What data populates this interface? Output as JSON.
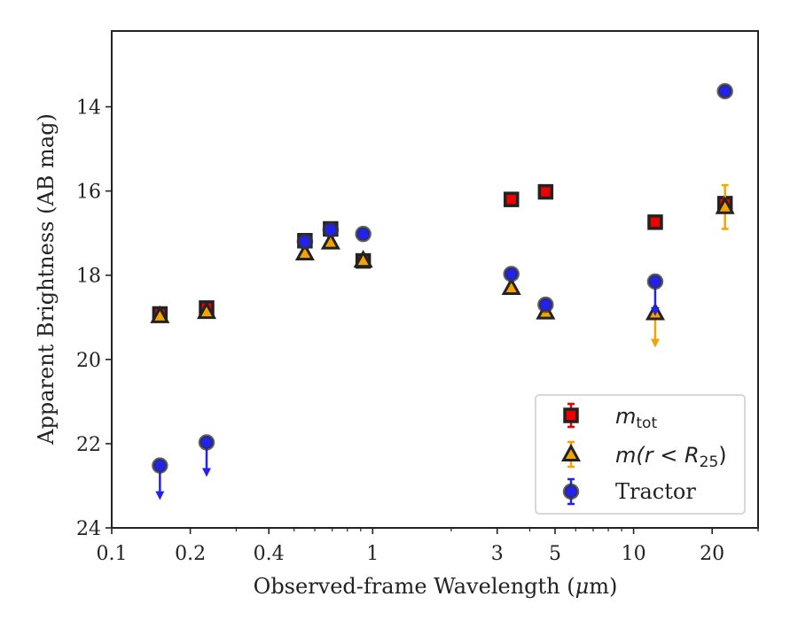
{
  "chart_data": {
    "type": "scatter",
    "x_scale": "log",
    "y_inverted": true,
    "xlabel_pre": "Observed-frame Wavelength (",
    "xlabel_mu": "μ",
    "xlabel_post": "m)",
    "ylabel": "Apparent Brightness (AB mag)",
    "xlim": [
      0.1,
      30
    ],
    "ylim": [
      24,
      12.2
    ],
    "x_ticks": [
      0.1,
      0.2,
      0.4,
      1,
      3,
      5,
      10,
      20
    ],
    "x_tick_labels": [
      "0.1",
      "0.2",
      "0.4",
      "1",
      "3",
      "5",
      "10",
      "20"
    ],
    "y_ticks": [
      14,
      16,
      18,
      20,
      22,
      24
    ],
    "y_tick_labels": [
      "14",
      "16",
      "18",
      "20",
      "22",
      "24"
    ],
    "legend_position": "bottom-right",
    "series": [
      {
        "name": "m_tot",
        "legend_text": "m",
        "legend_sub": "tot",
        "marker": "square",
        "color": "#ee0000",
        "edge": "#222222",
        "points": [
          {
            "x": 0.153,
            "y": 18.92,
            "err": 0.08
          },
          {
            "x": 0.231,
            "y": 18.78,
            "err": 0.06
          },
          {
            "x": 0.55,
            "y": 17.18,
            "err": 0.05
          },
          {
            "x": 0.69,
            "y": 16.9,
            "err": 0.05
          },
          {
            "x": 0.92,
            "y": 17.66,
            "err": 0.05
          },
          {
            "x": 3.4,
            "y": 16.2,
            "err": 0.04
          },
          {
            "x": 4.6,
            "y": 16.02,
            "err": 0.04
          },
          {
            "x": 12.1,
            "y": 16.74,
            "err": 0.05
          },
          {
            "x": 22.4,
            "y": 16.3,
            "err": 0.1
          }
        ]
      },
      {
        "name": "m(r < R25)",
        "legend_text": "m(r < R",
        "legend_sub": "25",
        "legend_tail": ")",
        "marker": "triangle",
        "color": "#f5a300",
        "edge": "#222222",
        "points": [
          {
            "x": 0.153,
            "y": 18.97,
            "err": 0.05
          },
          {
            "x": 0.231,
            "y": 18.87,
            "err": 0.05
          },
          {
            "x": 0.55,
            "y": 17.48,
            "err": 0.04
          },
          {
            "x": 0.69,
            "y": 17.22,
            "err": 0.04
          },
          {
            "x": 0.92,
            "y": 17.65,
            "err": 0.04
          },
          {
            "x": 3.4,
            "y": 18.3,
            "err": 0.05
          },
          {
            "x": 4.6,
            "y": 18.88,
            "err": 0.05
          },
          {
            "x": 12.1,
            "y": 18.9,
            "upper_limit": true
          },
          {
            "x": 22.4,
            "y": 16.38,
            "err": 0.52
          }
        ]
      },
      {
        "name": "Tractor",
        "legend_text": "Tractor",
        "marker": "circle",
        "color": "#2222ee",
        "edge": "#333333",
        "points": [
          {
            "x": 0.153,
            "y": 22.52,
            "upper_limit": true
          },
          {
            "x": 0.231,
            "y": 21.97,
            "upper_limit": true
          },
          {
            "x": 0.55,
            "y": 17.2,
            "err": 0.04
          },
          {
            "x": 0.69,
            "y": 16.92,
            "err": 0.04
          },
          {
            "x": 0.92,
            "y": 17.02,
            "err": 0.04
          },
          {
            "x": 3.4,
            "y": 17.97,
            "err": 0.05
          },
          {
            "x": 4.6,
            "y": 18.7,
            "err": 0.05
          },
          {
            "x": 12.1,
            "y": 18.15,
            "upper_limit": true
          },
          {
            "x": 22.4,
            "y": 13.63,
            "err": 0.05
          }
        ]
      }
    ]
  }
}
